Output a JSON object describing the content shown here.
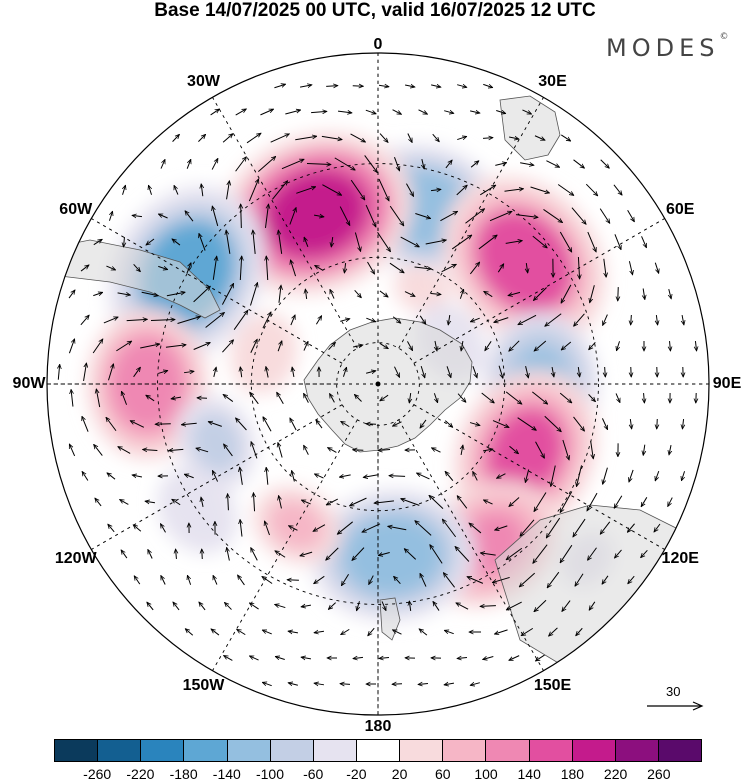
{
  "title": "Base 14/07/2025 00 UTC, valid 16/07/2025 12 UTC",
  "logo": {
    "text": "MODES",
    "mark": "©"
  },
  "longitude_labels": [
    "0",
    "30E",
    "60E",
    "90E",
    "120E",
    "150E",
    "180",
    "150W",
    "120W",
    "90W",
    "60W",
    "30W"
  ],
  "reference_vector": {
    "label": "30"
  },
  "colorbar": {
    "labels": [
      "-260",
      "-220",
      "-180",
      "-140",
      "-100",
      "-60",
      "-20",
      "20",
      "60",
      "100",
      "140",
      "180",
      "220",
      "260"
    ],
    "colors": [
      "#0b3a5c",
      "#135f91",
      "#2a84bd",
      "#5ea7d4",
      "#94bfe0",
      "#c3cfe5",
      "#e6e3f0",
      "#ffffff",
      "#f8dbdd",
      "#f6b6c6",
      "#ef88b3",
      "#e24fa0",
      "#c41b8c",
      "#8c0f7e",
      "#5a0a6b"
    ]
  },
  "map": {
    "projection": "south polar stereographic",
    "anomalies": [
      {
        "lon": 15,
        "lat": -48,
        "value": -130
      },
      {
        "lon": -20,
        "lat": -48,
        "value": 190
      },
      {
        "lon": 50,
        "lat": -46,
        "value": 170
      },
      {
        "lon": -60,
        "lat": -40,
        "value": -170
      },
      {
        "lon": -90,
        "lat": -38,
        "value": 120
      },
      {
        "lon": 90,
        "lat": -52,
        "value": -110
      },
      {
        "lon": 115,
        "lat": -52,
        "value": 150
      },
      {
        "lon": 145,
        "lat": -45,
        "value": 110
      },
      {
        "lon": 175,
        "lat": -50,
        "value": -140
      },
      {
        "lon": -110,
        "lat": -50,
        "value": -70
      },
      {
        "lon": -125,
        "lat": -40,
        "value": -60
      },
      {
        "lon": -150,
        "lat": -52,
        "value": 60
      },
      {
        "lon": -75,
        "lat": -62,
        "value": 40
      },
      {
        "lon": 25,
        "lat": -65,
        "value": 30
      },
      {
        "lon": 60,
        "lat": -70,
        "value": -40
      },
      {
        "lon": 130,
        "lat": -30,
        "value": -30
      }
    ]
  }
}
